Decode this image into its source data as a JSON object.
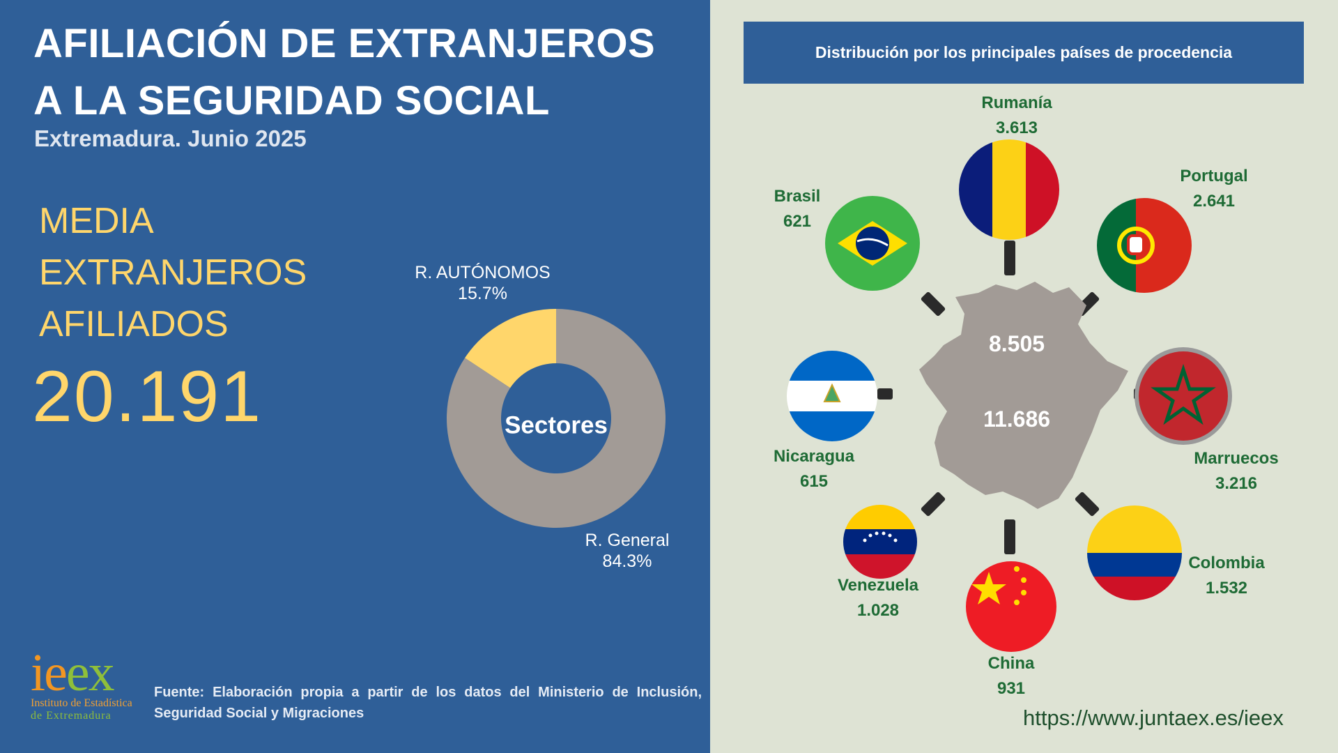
{
  "title_line1": "AFILIACIÓN DE EXTRANJEROS",
  "title_line2": "A LA SEGURIDAD SOCIAL",
  "subtitle": "Extremadura. Junio 2025",
  "media_line1": "MEDIA",
  "media_line2": "EXTRANJEROS",
  "media_line3": "AFILIADOS",
  "media_value": "20.191",
  "donut_center": "Sectores",
  "donut_labels": {
    "autonomos_name": "R. AUTÓNOMOS",
    "autonomos_pct": "15.7%",
    "general_name": "R. General",
    "general_pct": "84.3%"
  },
  "source_text": "Fuente: Elaboración propia a partir de los datos del Ministerio de Inclusión, Seguridad Social y Migraciones",
  "logo": {
    "text": "ieex",
    "sub1": "Instituto de Estadística",
    "sub2": "de Extremadura"
  },
  "map_header": "Distribución por los principales países de procedencia",
  "map_values": {
    "top": "8.505",
    "bottom": "11.686"
  },
  "url": "https://www.juntaex.es/ieex",
  "colors": {
    "panel_blue": "#2f5f98",
    "yellow": "#ffd66b",
    "donut_grey": "#a29b96",
    "green_text": "#1e6b35"
  },
  "chart_data": [
    {
      "type": "pie",
      "title": "Sectores",
      "categories": [
        "R. AUTÓNOMOS",
        "R. General"
      ],
      "values": [
        15.7,
        84.3
      ],
      "unit": "%",
      "colors": [
        "#ffd66b",
        "#a29b96"
      ]
    },
    {
      "type": "table",
      "title": "Distribución por los principales países de procedencia",
      "countries": [
        {
          "name": "Rumanía",
          "value": "3.613",
          "flag": "romania-flag"
        },
        {
          "name": "Portugal",
          "value": "2.641",
          "flag": "portugal-flag"
        },
        {
          "name": "Marruecos",
          "value": "3.216",
          "flag": "morocco-flag"
        },
        {
          "name": "Colombia",
          "value": "1.532",
          "flag": "colombia-flag"
        },
        {
          "name": "China",
          "value": "931",
          "flag": "china-flag"
        },
        {
          "name": "Venezuela",
          "value": "1.028",
          "flag": "venezuela-flag"
        },
        {
          "name": "Nicaragua",
          "value": "615",
          "flag": "nicaragua-flag"
        },
        {
          "name": "Brasil",
          "value": "621",
          "flag": "brazil-flag"
        }
      ]
    }
  ]
}
